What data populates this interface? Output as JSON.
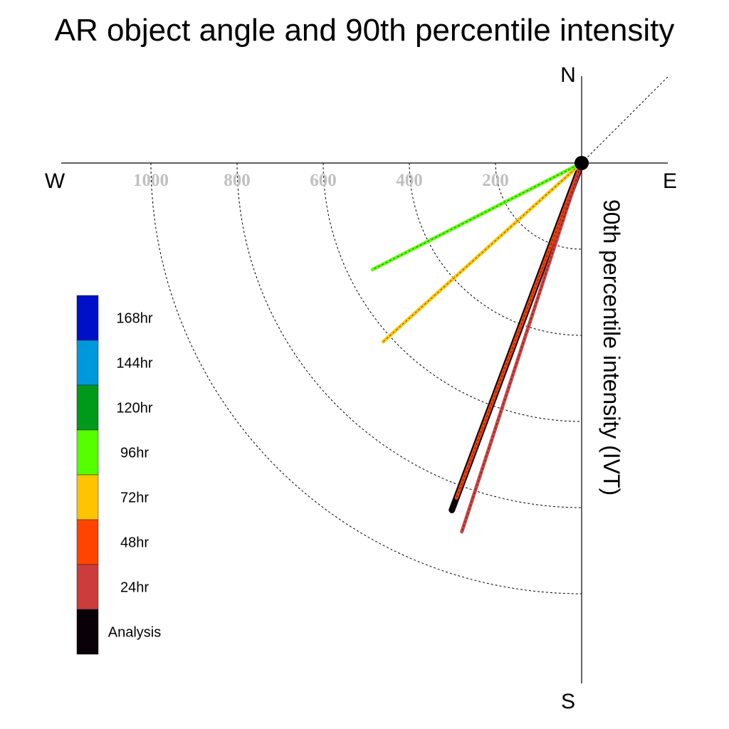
{
  "chart_data": {
    "type": "polar-line",
    "title": "AR object angle and 90th percentile intensity",
    "radial_label": "90th percentile intensity (IVT)",
    "compass": {
      "north": "N",
      "south": "S",
      "east": "E",
      "west": "W"
    },
    "rings": [
      200,
      400,
      600,
      800,
      1000
    ],
    "ring_labels": [
      "200",
      "400",
      "600",
      "800",
      "1000"
    ],
    "angle_unit": "degrees clockwise from north",
    "series": [
      {
        "name": "Analysis",
        "color": "#0a0008",
        "angle": 200.5,
        "intensity": 860
      },
      {
        "name": "48hr",
        "color": "#ff4400",
        "angle": 200.5,
        "intensity": 830
      },
      {
        "name": "24hr",
        "color": "#cc3c3c",
        "angle": 198.0,
        "intensity": 900
      },
      {
        "name": "72hr",
        "color": "#ffc400",
        "angle": 228.0,
        "intensity": 620
      },
      {
        "name": "96hr",
        "color": "#55ff00",
        "angle": 243.0,
        "intensity": 545
      }
    ],
    "legend": [
      {
        "label": "168hr",
        "color": "#0010c8"
      },
      {
        "label": "144hr",
        "color": "#0098dc"
      },
      {
        "label": "120hr",
        "color": "#009a1a"
      },
      {
        "label": "96hr",
        "color": "#55ff00"
      },
      {
        "label": "72hr",
        "color": "#ffc400"
      },
      {
        "label": "48hr",
        "color": "#ff4400"
      },
      {
        "label": "24hr",
        "color": "#cc3c3c"
      },
      {
        "label": "Analysis",
        "color": "#0a0008"
      }
    ]
  }
}
